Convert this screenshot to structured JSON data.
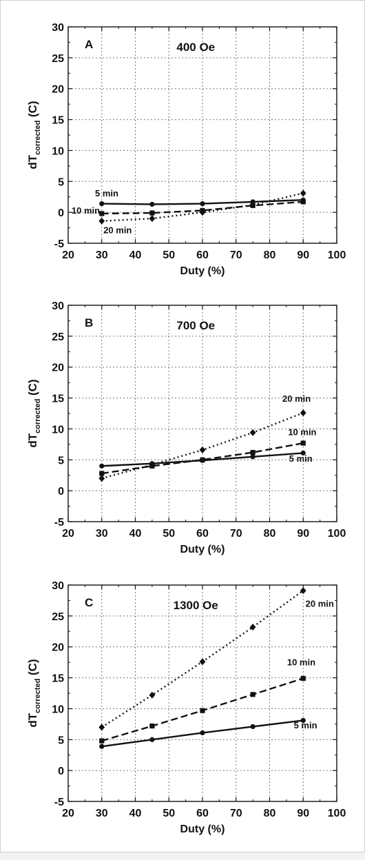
{
  "chart_data": [
    {
      "type": "line",
      "panel": "A",
      "title": "400 Oe",
      "xlabel": "Duty (%)",
      "ylabel_main": "dT",
      "ylabel_sub": "corrected",
      "ylabel_unit": " (C)",
      "xlim": [
        20,
        100
      ],
      "ylim": [
        -5,
        30
      ],
      "xticks": [
        20,
        30,
        40,
        50,
        60,
        70,
        80,
        90,
        100
      ],
      "yticks": [
        -5,
        0,
        5,
        10,
        15,
        20,
        25,
        30
      ],
      "grid": true,
      "x": [
        30,
        45,
        60,
        75,
        90
      ],
      "series": [
        {
          "name": "5 min",
          "marker": "circle",
          "dash": "solid",
          "values": [
            1.4,
            1.3,
            1.4,
            1.7,
            2.0
          ]
        },
        {
          "name": "10 min",
          "marker": "square",
          "dash": "dashed",
          "values": [
            -0.2,
            -0.1,
            0.3,
            1.1,
            1.7
          ]
        },
        {
          "name": "20 min",
          "marker": "diamond",
          "dash": "dotted",
          "values": [
            -1.4,
            -1.0,
            0.0,
            1.2,
            3.1
          ]
        }
      ]
    },
    {
      "type": "line",
      "panel": "B",
      "title": "700 Oe",
      "xlabel": "Duty (%)",
      "ylabel_main": "dT",
      "ylabel_sub": "corrected",
      "ylabel_unit": " (C)",
      "xlim": [
        20,
        100
      ],
      "ylim": [
        -5,
        30
      ],
      "xticks": [
        20,
        30,
        40,
        50,
        60,
        70,
        80,
        90,
        100
      ],
      "yticks": [
        -5,
        0,
        5,
        10,
        15,
        20,
        25,
        30
      ],
      "grid": true,
      "x": [
        30,
        45,
        60,
        75,
        90
      ],
      "series": [
        {
          "name": "5 min",
          "marker": "circle",
          "dash": "solid",
          "values": [
            4.0,
            4.4,
            4.9,
            5.5,
            6.1
          ]
        },
        {
          "name": "10 min",
          "marker": "square",
          "dash": "dashed",
          "values": [
            2.8,
            4.0,
            5.0,
            6.2,
            7.7
          ]
        },
        {
          "name": "20 min",
          "marker": "diamond",
          "dash": "dotted",
          "values": [
            2.0,
            4.2,
            6.6,
            9.4,
            12.6
          ]
        }
      ]
    },
    {
      "type": "line",
      "panel": "C",
      "title": "1300 Oe",
      "xlabel": "Duty (%)",
      "ylabel_main": "dT",
      "ylabel_sub": "corrected",
      "ylabel_unit": " (C)",
      "xlim": [
        20,
        100
      ],
      "ylim": [
        -5,
        30
      ],
      "xticks": [
        20,
        30,
        40,
        50,
        60,
        70,
        80,
        90,
        100
      ],
      "yticks": [
        -5,
        0,
        5,
        10,
        15,
        20,
        25,
        30
      ],
      "grid": true,
      "x": [
        30,
        45,
        60,
        75,
        90
      ],
      "series": [
        {
          "name": "5 min",
          "marker": "circle",
          "dash": "solid",
          "values": [
            3.9,
            5.0,
            6.1,
            7.1,
            8.1
          ]
        },
        {
          "name": "10 min",
          "marker": "square",
          "dash": "dashed",
          "values": [
            4.8,
            7.2,
            9.7,
            12.3,
            14.9
          ]
        },
        {
          "name": "20 min",
          "marker": "diamond",
          "dash": "dotted",
          "values": [
            7.0,
            12.2,
            17.6,
            23.2,
            29.1
          ]
        }
      ]
    }
  ]
}
